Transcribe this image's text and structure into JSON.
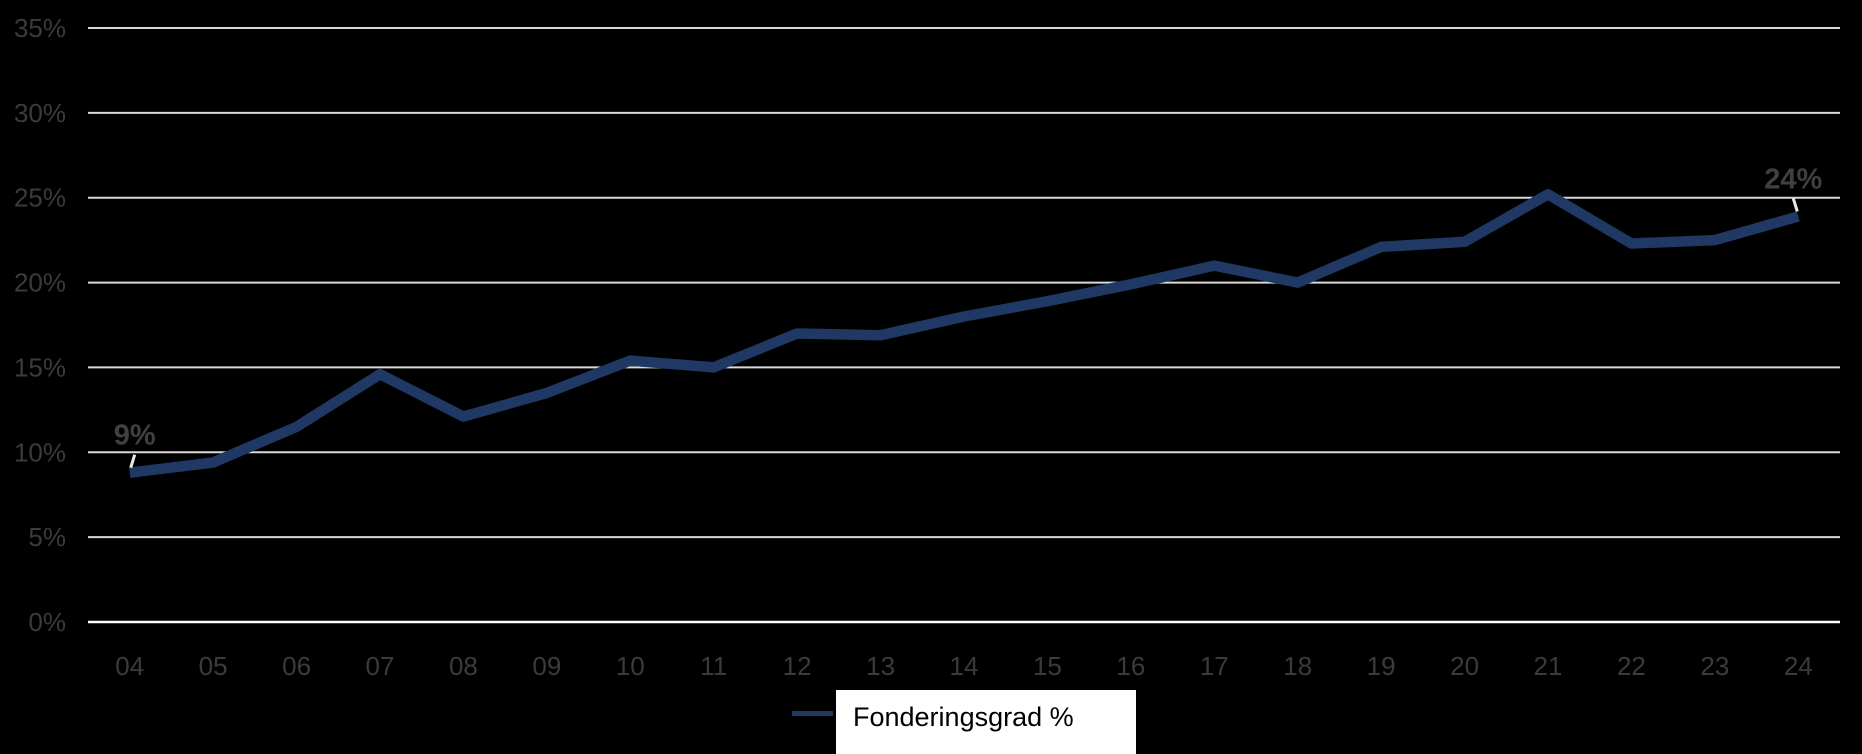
{
  "chart_data": {
    "type": "line",
    "title": "",
    "categories": [
      "04",
      "05",
      "06",
      "07",
      "08",
      "09",
      "10",
      "11",
      "12",
      "13",
      "14",
      "15",
      "16",
      "17",
      "18",
      "19",
      "20",
      "21",
      "22",
      "23",
      "24"
    ],
    "series": [
      {
        "name": "Fonderingsgrad %",
        "values": [
          8.8,
          9.4,
          11.5,
          14.6,
          12.1,
          13.5,
          15.4,
          15.0,
          17.0,
          16.9,
          18.0,
          18.9,
          19.9,
          21.0,
          20.0,
          22.1,
          22.4,
          25.2,
          22.3,
          22.5,
          23.9
        ]
      }
    ],
    "ylim": [
      0,
      35
    ],
    "ytick_step": 5,
    "ytick_labels": [
      "0%",
      "5%",
      "10%",
      "15%",
      "20%",
      "25%",
      "30%",
      "35%"
    ],
    "xlabel": "",
    "ylabel": "",
    "grid": "horizontal",
    "legend_position": "bottom",
    "point_labels": [
      {
        "index": 0,
        "label": "9%"
      },
      {
        "index": 20,
        "label": "24%"
      }
    ]
  },
  "legend": {
    "label": "Fonderingsgrad %"
  },
  "colors": {
    "background": "#000000",
    "line": "#1f3864",
    "gridline": "#d9d9d9",
    "axis_zero_line": "#ffffff",
    "tick_text": "#3b3b3b",
    "data_label_text": "#404040",
    "leader_line": "#e8e8e8",
    "legend_bg": "#ffffff",
    "legend_text": "#000000"
  }
}
